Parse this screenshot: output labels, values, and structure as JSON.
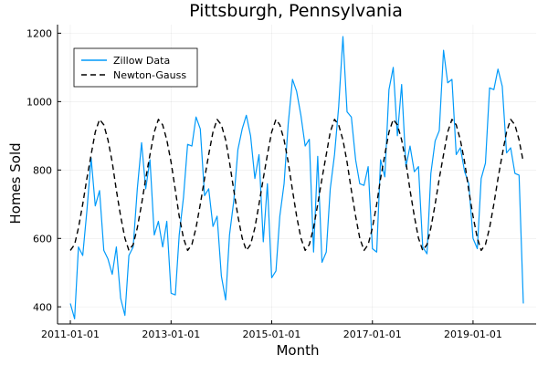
{
  "chart_data": {
    "type": "line",
    "title": "Pittsburgh, Pennsylvania",
    "xlabel": "Month",
    "ylabel": "Homes Sold",
    "xlim": [
      "2011-01-01",
      "2020-01-01"
    ],
    "ylim": [
      350,
      1225
    ],
    "x_ticks": [
      "2011-01-01",
      "2013-01-01",
      "2015-01-01",
      "2017-01-01",
      "2019-01-01"
    ],
    "y_ticks": [
      400,
      600,
      800,
      1000,
      1200
    ],
    "grid": true,
    "legend_position": "top-left",
    "series": [
      {
        "name": "Zillow Data",
        "color": "#009AFA",
        "style": "solid",
        "points": [
          [
            "2011-01-01",
            410
          ],
          [
            "2011-02-01",
            365
          ],
          [
            "2011-03-01",
            575
          ],
          [
            "2011-04-01",
            550
          ],
          [
            "2011-05-01",
            680
          ],
          [
            "2011-06-01",
            835
          ],
          [
            "2011-07-01",
            695
          ],
          [
            "2011-08-01",
            740
          ],
          [
            "2011-09-01",
            565
          ],
          [
            "2011-10-01",
            540
          ],
          [
            "2011-11-01",
            495
          ],
          [
            "2011-12-01",
            575
          ],
          [
            "2012-01-01",
            425
          ],
          [
            "2012-02-01",
            375
          ],
          [
            "2012-03-01",
            550
          ],
          [
            "2012-04-01",
            575
          ],
          [
            "2012-05-01",
            745
          ],
          [
            "2012-06-01",
            880
          ],
          [
            "2012-07-01",
            745
          ],
          [
            "2012-08-01",
            830
          ],
          [
            "2012-09-01",
            610
          ],
          [
            "2012-10-01",
            650
          ],
          [
            "2012-11-01",
            575
          ],
          [
            "2012-12-01",
            650
          ],
          [
            "2013-01-01",
            440
          ],
          [
            "2013-02-01",
            435
          ],
          [
            "2013-03-01",
            610
          ],
          [
            "2013-04-01",
            720
          ],
          [
            "2013-05-01",
            875
          ],
          [
            "2013-06-01",
            870
          ],
          [
            "2013-07-01",
            955
          ],
          [
            "2013-08-01",
            920
          ],
          [
            "2013-09-01",
            725
          ],
          [
            "2013-10-01",
            745
          ],
          [
            "2013-11-01",
            635
          ],
          [
            "2013-12-01",
            665
          ],
          [
            "2014-01-01",
            490
          ],
          [
            "2014-02-01",
            420
          ],
          [
            "2014-03-01",
            610
          ],
          [
            "2014-04-01",
            710
          ],
          [
            "2014-05-01",
            860
          ],
          [
            "2014-06-01",
            920
          ],
          [
            "2014-07-01",
            960
          ],
          [
            "2014-08-01",
            900
          ],
          [
            "2014-09-01",
            775
          ],
          [
            "2014-10-01",
            845
          ],
          [
            "2014-11-01",
            590
          ],
          [
            "2014-12-01",
            760
          ],
          [
            "2015-01-01",
            485
          ],
          [
            "2015-02-01",
            505
          ],
          [
            "2015-03-01",
            665
          ],
          [
            "2015-04-01",
            760
          ],
          [
            "2015-05-01",
            935
          ],
          [
            "2015-06-01",
            1065
          ],
          [
            "2015-07-01",
            1030
          ],
          [
            "2015-08-01",
            960
          ],
          [
            "2015-09-01",
            870
          ],
          [
            "2015-10-01",
            890
          ],
          [
            "2015-11-01",
            560
          ],
          [
            "2015-12-01",
            840
          ],
          [
            "2016-01-01",
            530
          ],
          [
            "2016-02-01",
            560
          ],
          [
            "2016-03-01",
            745
          ],
          [
            "2016-04-01",
            845
          ],
          [
            "2016-05-01",
            985
          ],
          [
            "2016-06-01",
            1190
          ],
          [
            "2016-07-01",
            970
          ],
          [
            "2016-08-01",
            955
          ],
          [
            "2016-09-01",
            830
          ],
          [
            "2016-10-01",
            760
          ],
          [
            "2016-11-01",
            755
          ],
          [
            "2016-12-01",
            810
          ],
          [
            "2017-01-01",
            570
          ],
          [
            "2017-02-01",
            560
          ],
          [
            "2017-03-01",
            830
          ],
          [
            "2017-04-01",
            780
          ],
          [
            "2017-05-01",
            1035
          ],
          [
            "2017-06-01",
            1100
          ],
          [
            "2017-07-01",
            900
          ],
          [
            "2017-08-01",
            1050
          ],
          [
            "2017-09-01",
            810
          ],
          [
            "2017-10-01",
            870
          ],
          [
            "2017-11-01",
            795
          ],
          [
            "2017-12-01",
            810
          ],
          [
            "2018-01-01",
            575
          ],
          [
            "2018-02-01",
            555
          ],
          [
            "2018-03-01",
            790
          ],
          [
            "2018-04-01",
            885
          ],
          [
            "2018-05-01",
            915
          ],
          [
            "2018-06-01",
            1150
          ],
          [
            "2018-07-01",
            1055
          ],
          [
            "2018-08-01",
            1065
          ],
          [
            "2018-09-01",
            845
          ],
          [
            "2018-10-01",
            865
          ],
          [
            "2018-11-01",
            795
          ],
          [
            "2018-12-01",
            760
          ],
          [
            "2019-01-01",
            600
          ],
          [
            "2019-02-01",
            570
          ],
          [
            "2019-03-01",
            775
          ],
          [
            "2019-04-01",
            820
          ],
          [
            "2019-05-01",
            1040
          ],
          [
            "2019-06-01",
            1035
          ],
          [
            "2019-07-01",
            1095
          ],
          [
            "2019-08-01",
            1045
          ],
          [
            "2019-09-01",
            850
          ],
          [
            "2019-10-01",
            865
          ],
          [
            "2019-11-01",
            790
          ],
          [
            "2019-12-01",
            785
          ],
          [
            "2020-01-01",
            410
          ]
        ]
      },
      {
        "name": "Newton-Gauss",
        "color": "#000000",
        "style": "dashed",
        "points": [
          [
            "2011-01-01",
            565
          ],
          [
            "2011-02-01",
            582
          ],
          [
            "2011-03-01",
            631
          ],
          [
            "2011-04-01",
            700
          ],
          [
            "2011-05-01",
            775
          ],
          [
            "2011-06-01",
            845
          ],
          [
            "2011-07-01",
            911
          ],
          [
            "2011-08-01",
            948
          ],
          [
            "2011-09-01",
            932
          ],
          [
            "2011-10-01",
            888
          ],
          [
            "2011-11-01",
            823
          ],
          [
            "2011-12-01",
            741
          ],
          [
            "2012-01-01",
            665
          ],
          [
            "2012-02-01",
            601
          ],
          [
            "2012-03-01",
            565
          ],
          [
            "2012-04-01",
            582
          ],
          [
            "2012-05-01",
            631
          ],
          [
            "2012-06-01",
            700
          ],
          [
            "2012-07-01",
            775
          ],
          [
            "2012-08-01",
            845
          ],
          [
            "2012-09-01",
            911
          ],
          [
            "2012-10-01",
            948
          ],
          [
            "2012-11-01",
            932
          ],
          [
            "2012-12-01",
            888
          ],
          [
            "2013-01-01",
            823
          ],
          [
            "2013-02-01",
            741
          ],
          [
            "2013-03-01",
            665
          ],
          [
            "2013-04-01",
            601
          ],
          [
            "2013-05-01",
            565
          ],
          [
            "2013-06-01",
            582
          ],
          [
            "2013-07-01",
            631
          ],
          [
            "2013-08-01",
            700
          ],
          [
            "2013-09-01",
            775
          ],
          [
            "2013-10-01",
            845
          ],
          [
            "2013-11-01",
            911
          ],
          [
            "2013-12-01",
            948
          ],
          [
            "2014-01-01",
            932
          ],
          [
            "2014-02-01",
            888
          ],
          [
            "2014-03-01",
            823
          ],
          [
            "2014-04-01",
            741
          ],
          [
            "2014-05-01",
            665
          ],
          [
            "2014-06-01",
            601
          ],
          [
            "2014-07-01",
            565
          ],
          [
            "2014-08-01",
            582
          ],
          [
            "2014-09-01",
            631
          ],
          [
            "2014-10-01",
            700
          ],
          [
            "2014-11-01",
            775
          ],
          [
            "2014-12-01",
            845
          ],
          [
            "2015-01-01",
            911
          ],
          [
            "2015-02-01",
            948
          ],
          [
            "2015-03-01",
            932
          ],
          [
            "2015-04-01",
            888
          ],
          [
            "2015-05-01",
            823
          ],
          [
            "2015-06-01",
            741
          ],
          [
            "2015-07-01",
            665
          ],
          [
            "2015-08-01",
            601
          ],
          [
            "2015-09-01",
            565
          ],
          [
            "2015-10-01",
            582
          ],
          [
            "2015-11-01",
            631
          ],
          [
            "2015-12-01",
            700
          ],
          [
            "2016-01-01",
            775
          ],
          [
            "2016-02-01",
            845
          ],
          [
            "2016-03-01",
            911
          ],
          [
            "2016-04-01",
            948
          ],
          [
            "2016-05-01",
            932
          ],
          [
            "2016-06-01",
            888
          ],
          [
            "2016-07-01",
            823
          ],
          [
            "2016-08-01",
            741
          ],
          [
            "2016-09-01",
            665
          ],
          [
            "2016-10-01",
            601
          ],
          [
            "2016-11-01",
            565
          ],
          [
            "2016-12-01",
            582
          ],
          [
            "2017-01-01",
            631
          ],
          [
            "2017-02-01",
            700
          ],
          [
            "2017-03-01",
            775
          ],
          [
            "2017-04-01",
            845
          ],
          [
            "2017-05-01",
            911
          ],
          [
            "2017-06-01",
            948
          ],
          [
            "2017-07-01",
            932
          ],
          [
            "2017-08-01",
            888
          ],
          [
            "2017-09-01",
            823
          ],
          [
            "2017-10-01",
            741
          ],
          [
            "2017-11-01",
            665
          ],
          [
            "2017-12-01",
            601
          ],
          [
            "2018-01-01",
            565
          ],
          [
            "2018-02-01",
            582
          ],
          [
            "2018-03-01",
            631
          ],
          [
            "2018-04-01",
            700
          ],
          [
            "2018-05-01",
            775
          ],
          [
            "2018-06-01",
            845
          ],
          [
            "2018-07-01",
            911
          ],
          [
            "2018-08-01",
            948
          ],
          [
            "2018-09-01",
            932
          ],
          [
            "2018-10-01",
            888
          ],
          [
            "2018-11-01",
            823
          ],
          [
            "2018-12-01",
            741
          ],
          [
            "2019-01-01",
            665
          ],
          [
            "2019-02-01",
            601
          ],
          [
            "2019-03-01",
            565
          ],
          [
            "2019-04-01",
            582
          ],
          [
            "2019-05-01",
            631
          ],
          [
            "2019-06-01",
            700
          ],
          [
            "2019-07-01",
            775
          ],
          [
            "2019-08-01",
            845
          ],
          [
            "2019-09-01",
            911
          ],
          [
            "2019-10-01",
            948
          ],
          [
            "2019-11-01",
            932
          ],
          [
            "2019-12-01",
            888
          ],
          [
            "2020-01-01",
            823
          ]
        ]
      }
    ]
  }
}
